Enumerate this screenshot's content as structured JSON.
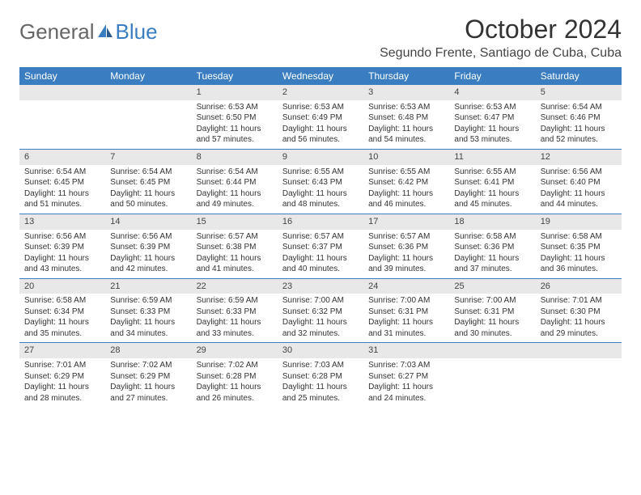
{
  "logo": {
    "part1": "General",
    "part2": "Blue"
  },
  "title": "October 2024",
  "location": "Segundo Frente, Santiago de Cuba, Cuba",
  "brand_color": "#3a7ec1",
  "header_bg": "#3a7ec1",
  "day_number_bg": "#e8e8e8",
  "background": "#ffffff",
  "day_names": [
    "Sunday",
    "Monday",
    "Tuesday",
    "Wednesday",
    "Thursday",
    "Friday",
    "Saturday"
  ],
  "weeks": [
    [
      null,
      null,
      {
        "n": "1",
        "sr": "Sunrise: 6:53 AM",
        "ss": "Sunset: 6:50 PM",
        "dl": "Daylight: 11 hours and 57 minutes."
      },
      {
        "n": "2",
        "sr": "Sunrise: 6:53 AM",
        "ss": "Sunset: 6:49 PM",
        "dl": "Daylight: 11 hours and 56 minutes."
      },
      {
        "n": "3",
        "sr": "Sunrise: 6:53 AM",
        "ss": "Sunset: 6:48 PM",
        "dl": "Daylight: 11 hours and 54 minutes."
      },
      {
        "n": "4",
        "sr": "Sunrise: 6:53 AM",
        "ss": "Sunset: 6:47 PM",
        "dl": "Daylight: 11 hours and 53 minutes."
      },
      {
        "n": "5",
        "sr": "Sunrise: 6:54 AM",
        "ss": "Sunset: 6:46 PM",
        "dl": "Daylight: 11 hours and 52 minutes."
      }
    ],
    [
      {
        "n": "6",
        "sr": "Sunrise: 6:54 AM",
        "ss": "Sunset: 6:45 PM",
        "dl": "Daylight: 11 hours and 51 minutes."
      },
      {
        "n": "7",
        "sr": "Sunrise: 6:54 AM",
        "ss": "Sunset: 6:45 PM",
        "dl": "Daylight: 11 hours and 50 minutes."
      },
      {
        "n": "8",
        "sr": "Sunrise: 6:54 AM",
        "ss": "Sunset: 6:44 PM",
        "dl": "Daylight: 11 hours and 49 minutes."
      },
      {
        "n": "9",
        "sr": "Sunrise: 6:55 AM",
        "ss": "Sunset: 6:43 PM",
        "dl": "Daylight: 11 hours and 48 minutes."
      },
      {
        "n": "10",
        "sr": "Sunrise: 6:55 AM",
        "ss": "Sunset: 6:42 PM",
        "dl": "Daylight: 11 hours and 46 minutes."
      },
      {
        "n": "11",
        "sr": "Sunrise: 6:55 AM",
        "ss": "Sunset: 6:41 PM",
        "dl": "Daylight: 11 hours and 45 minutes."
      },
      {
        "n": "12",
        "sr": "Sunrise: 6:56 AM",
        "ss": "Sunset: 6:40 PM",
        "dl": "Daylight: 11 hours and 44 minutes."
      }
    ],
    [
      {
        "n": "13",
        "sr": "Sunrise: 6:56 AM",
        "ss": "Sunset: 6:39 PM",
        "dl": "Daylight: 11 hours and 43 minutes."
      },
      {
        "n": "14",
        "sr": "Sunrise: 6:56 AM",
        "ss": "Sunset: 6:39 PM",
        "dl": "Daylight: 11 hours and 42 minutes."
      },
      {
        "n": "15",
        "sr": "Sunrise: 6:57 AM",
        "ss": "Sunset: 6:38 PM",
        "dl": "Daylight: 11 hours and 41 minutes."
      },
      {
        "n": "16",
        "sr": "Sunrise: 6:57 AM",
        "ss": "Sunset: 6:37 PM",
        "dl": "Daylight: 11 hours and 40 minutes."
      },
      {
        "n": "17",
        "sr": "Sunrise: 6:57 AM",
        "ss": "Sunset: 6:36 PM",
        "dl": "Daylight: 11 hours and 39 minutes."
      },
      {
        "n": "18",
        "sr": "Sunrise: 6:58 AM",
        "ss": "Sunset: 6:36 PM",
        "dl": "Daylight: 11 hours and 37 minutes."
      },
      {
        "n": "19",
        "sr": "Sunrise: 6:58 AM",
        "ss": "Sunset: 6:35 PM",
        "dl": "Daylight: 11 hours and 36 minutes."
      }
    ],
    [
      {
        "n": "20",
        "sr": "Sunrise: 6:58 AM",
        "ss": "Sunset: 6:34 PM",
        "dl": "Daylight: 11 hours and 35 minutes."
      },
      {
        "n": "21",
        "sr": "Sunrise: 6:59 AM",
        "ss": "Sunset: 6:33 PM",
        "dl": "Daylight: 11 hours and 34 minutes."
      },
      {
        "n": "22",
        "sr": "Sunrise: 6:59 AM",
        "ss": "Sunset: 6:33 PM",
        "dl": "Daylight: 11 hours and 33 minutes."
      },
      {
        "n": "23",
        "sr": "Sunrise: 7:00 AM",
        "ss": "Sunset: 6:32 PM",
        "dl": "Daylight: 11 hours and 32 minutes."
      },
      {
        "n": "24",
        "sr": "Sunrise: 7:00 AM",
        "ss": "Sunset: 6:31 PM",
        "dl": "Daylight: 11 hours and 31 minutes."
      },
      {
        "n": "25",
        "sr": "Sunrise: 7:00 AM",
        "ss": "Sunset: 6:31 PM",
        "dl": "Daylight: 11 hours and 30 minutes."
      },
      {
        "n": "26",
        "sr": "Sunrise: 7:01 AM",
        "ss": "Sunset: 6:30 PM",
        "dl": "Daylight: 11 hours and 29 minutes."
      }
    ],
    [
      {
        "n": "27",
        "sr": "Sunrise: 7:01 AM",
        "ss": "Sunset: 6:29 PM",
        "dl": "Daylight: 11 hours and 28 minutes."
      },
      {
        "n": "28",
        "sr": "Sunrise: 7:02 AM",
        "ss": "Sunset: 6:29 PM",
        "dl": "Daylight: 11 hours and 27 minutes."
      },
      {
        "n": "29",
        "sr": "Sunrise: 7:02 AM",
        "ss": "Sunset: 6:28 PM",
        "dl": "Daylight: 11 hours and 26 minutes."
      },
      {
        "n": "30",
        "sr": "Sunrise: 7:03 AM",
        "ss": "Sunset: 6:28 PM",
        "dl": "Daylight: 11 hours and 25 minutes."
      },
      {
        "n": "31",
        "sr": "Sunrise: 7:03 AM",
        "ss": "Sunset: 6:27 PM",
        "dl": "Daylight: 11 hours and 24 minutes."
      },
      null,
      null
    ]
  ]
}
